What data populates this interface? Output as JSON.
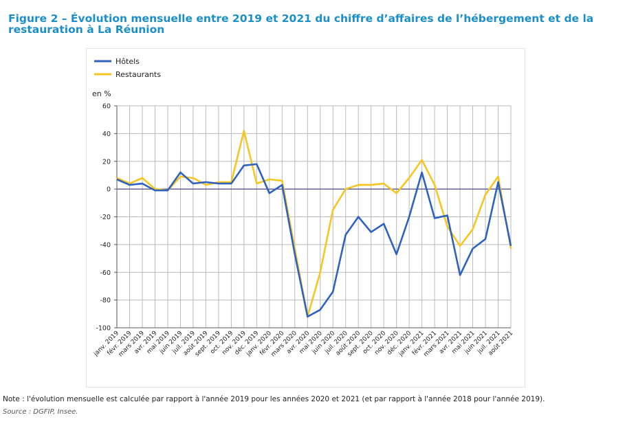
{
  "title": "Figure 2 – Évolution mensuelle entre 2019 et 2021 du chiffre d’affaires de l’hébergement et de la restauration à La Réunion",
  "note": "Note : l'évolution mensuelle est calculée par rapport à l'année 2019 pour les années 2020 et 2021 (et par rapport à l'année 2018 pour l'année 2019).",
  "source": "Source : DGFIP, Insee.",
  "chart_data": {
    "type": "line",
    "unit_label": "en %",
    "ylim": [
      -100,
      60
    ],
    "yticks": [
      60,
      40,
      20,
      0,
      -20,
      -40,
      -60,
      -80,
      -100
    ],
    "grid": true,
    "legend_position": "top-left",
    "categories": [
      "janv. 2019",
      "févr. 2019",
      "mars 2019",
      "avr. 2019",
      "mai 2019",
      "juin 2019",
      "juil. 2019",
      "août 2019",
      "sept. 2019",
      "oct. 2019",
      "nov. 2019",
      "déc. 2019",
      "janv. 2020",
      "févr. 2020",
      "mars 2020",
      "avr. 2020",
      "mai 2020",
      "juin 2020",
      "juil. 2020",
      "août 2020",
      "sept. 2020",
      "oct. 2020",
      "nov. 2020",
      "déc. 2020",
      "janv. 2021",
      "févr. 2021",
      "mars 2021",
      "avr. 2021",
      "mai 2021",
      "juin 2021",
      "juil. 2021",
      "août 2021"
    ],
    "series": [
      {
        "name": "Hôtels",
        "color": "#2f62c0",
        "values": [
          7,
          3,
          4,
          -1,
          -1,
          12,
          4,
          5,
          4,
          4,
          17,
          18,
          -3,
          3,
          -47,
          -92,
          -87,
          -74,
          -33,
          -20,
          -31,
          -25,
          -47,
          -20,
          12,
          -21,
          -19,
          -62,
          -43,
          -36,
          5,
          -41
        ]
      },
      {
        "name": "Restaurants",
        "color": "#f6c51f",
        "values": [
          8,
          4,
          8,
          0,
          -1,
          9,
          8,
          3,
          5,
          5,
          42,
          4,
          7,
          6,
          -43,
          -92,
          -60,
          -15,
          0,
          3,
          3,
          4,
          -3,
          8,
          21,
          3,
          -27,
          -41,
          -29,
          -4,
          9,
          -43
        ]
      }
    ]
  }
}
